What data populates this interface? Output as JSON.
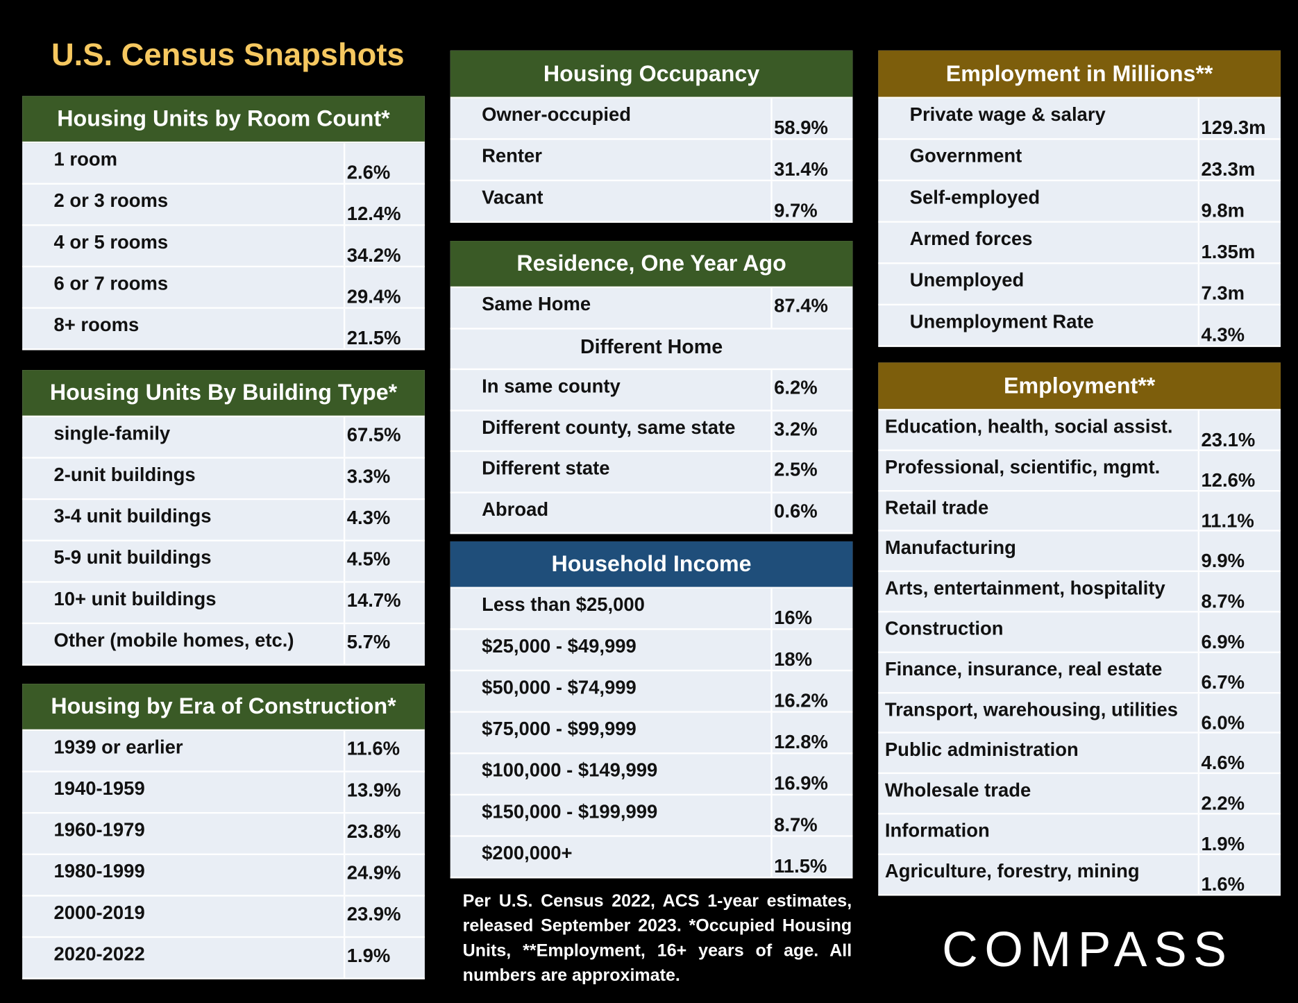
{
  "title": "U.S. Census Snapshots",
  "tables": [
    {
      "title": "Housing Units by Room Count*",
      "rows": [
        [
          "1 room",
          "2.6%"
        ],
        [
          "2 or 3 rooms",
          "12.4%"
        ],
        [
          "4 or 5 rooms",
          "34.2%"
        ],
        [
          "6 or 7 rooms",
          "29.4%"
        ],
        [
          "8+ rooms",
          "21.5%"
        ]
      ]
    },
    {
      "title": "Housing Units By Building Type*",
      "rows": [
        [
          "single-family",
          "67.5%"
        ],
        [
          "2-unit buildings",
          "3.3%"
        ],
        [
          "3-4 unit buildings",
          "4.3%"
        ],
        [
          "5-9 unit buildings",
          "4.5%"
        ],
        [
          "10+ unit buildings",
          "14.7%"
        ],
        [
          "Other (mobile homes, etc.)",
          "5.7%"
        ]
      ]
    },
    {
      "title": "Housing by Era of Construction*",
      "rows": [
        [
          "1939 or earlier",
          "11.6%"
        ],
        [
          "1940-1959",
          "13.9%"
        ],
        [
          "1960-1979",
          "23.8%"
        ],
        [
          "1980-1999",
          "24.9%"
        ],
        [
          "2000-2019",
          "23.9%"
        ],
        [
          "2020-2022",
          "1.9%"
        ]
      ]
    },
    {
      "title": "Housing Occupancy",
      "rows": [
        [
          "Owner-occupied",
          "58.9%"
        ],
        [
          "Renter",
          "31.4%"
        ],
        [
          "Vacant",
          "9.7%"
        ]
      ]
    },
    {
      "title": "Residence, One Year Ago",
      "rows": [
        [
          "Same Home",
          "87.4%"
        ],
        [
          "Different Home"
        ],
        [
          "In same county",
          "6.2%"
        ],
        [
          "Different county, same state",
          "3.2%"
        ],
        [
          "Different state",
          "2.5%"
        ],
        [
          "Abroad",
          "0.6%"
        ]
      ]
    },
    {
      "title": "Household Income",
      "rows": [
        [
          "Less than $25,000",
          "16%"
        ],
        [
          "$25,000 - $49,999",
          "18%"
        ],
        [
          "$50,000 - $74,999",
          "16.2%"
        ],
        [
          "$75,000 - $99,999",
          "12.8%"
        ],
        [
          "$100,000 - $149,999",
          "16.9%"
        ],
        [
          "$150,000 - $199,999",
          "8.7%"
        ],
        [
          "$200,000+",
          "11.5%"
        ]
      ]
    },
    {
      "title": "Employment in Millions**",
      "rows": [
        [
          "Private wage & salary",
          "129.3m"
        ],
        [
          "Government",
          "23.3m"
        ],
        [
          "Self-employed",
          "9.8m"
        ],
        [
          "Armed forces",
          "1.35m"
        ],
        [
          "Unemployed",
          "7.3m"
        ],
        [
          "Unemployment Rate",
          "4.3%"
        ]
      ]
    },
    {
      "title": "Employment**",
      "rows": [
        [
          "Education, health, social assist.",
          "23.1%"
        ],
        [
          "Professional, scientific, mgmt.",
          "12.6%"
        ],
        [
          "Retail trade",
          "11.1%"
        ],
        [
          "Manufacturing",
          "9.9%"
        ],
        [
          "Arts, entertainment, hospitality",
          "8.7%"
        ],
        [
          "Construction",
          "6.9%"
        ],
        [
          "Finance, insurance, real estate",
          "6.7%"
        ],
        [
          "Transport, warehousing, utilities",
          "6.0%"
        ],
        [
          "Public administration",
          "4.6%"
        ],
        [
          "Wholesale trade",
          "2.2%"
        ],
        [
          "Information",
          "1.9%"
        ],
        [
          "Agriculture, forestry, mining",
          "1.6%"
        ]
      ]
    }
  ],
  "footnote": "Per U.S. Census 2022, ACS 1-year estimates, released September 2023. *Occupied Housing Units, **Employment, 16+ years of age. All numbers are approximate.",
  "logo": "COMPASS"
}
